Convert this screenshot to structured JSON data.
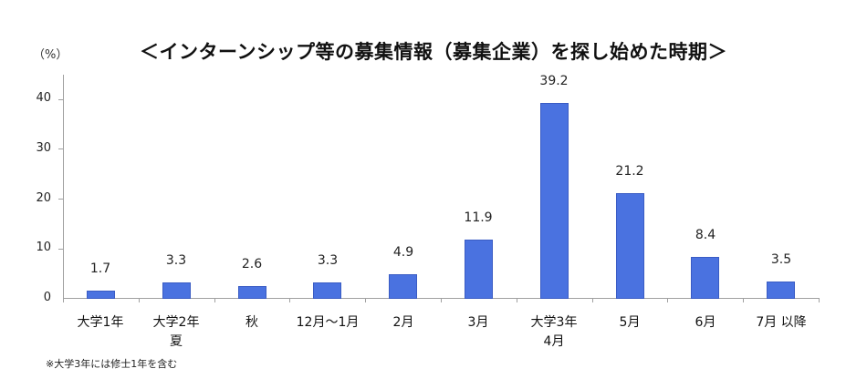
{
  "chart_data": {
    "type": "bar",
    "title": "＜インターンシップ等の募集情報（募集企業）を探し始めた時期＞",
    "xlabel": "",
    "ylabel": "（%）",
    "ylim": [
      0,
      40
    ],
    "yticks": [
      0,
      10,
      20,
      30,
      40
    ],
    "grid": false,
    "legend": null,
    "categories": [
      "大学1年",
      "大学2年\n夏",
      "秋",
      "12月～1月",
      "2月",
      "3月",
      "大学3年\n4月",
      "5月",
      "6月",
      "7月 以降"
    ],
    "values": [
      1.7,
      3.3,
      2.6,
      3.3,
      4.9,
      11.9,
      39.2,
      21.2,
      8.4,
      3.5
    ],
    "value_labels": [
      "1.7",
      "3.3",
      "2.6",
      "3.3",
      "4.9",
      "11.9",
      "39.2",
      "21.2",
      "8.4",
      "3.5"
    ],
    "bar_color": "#4a72e0",
    "footnote": "※大学3年には修士1年を含む"
  }
}
